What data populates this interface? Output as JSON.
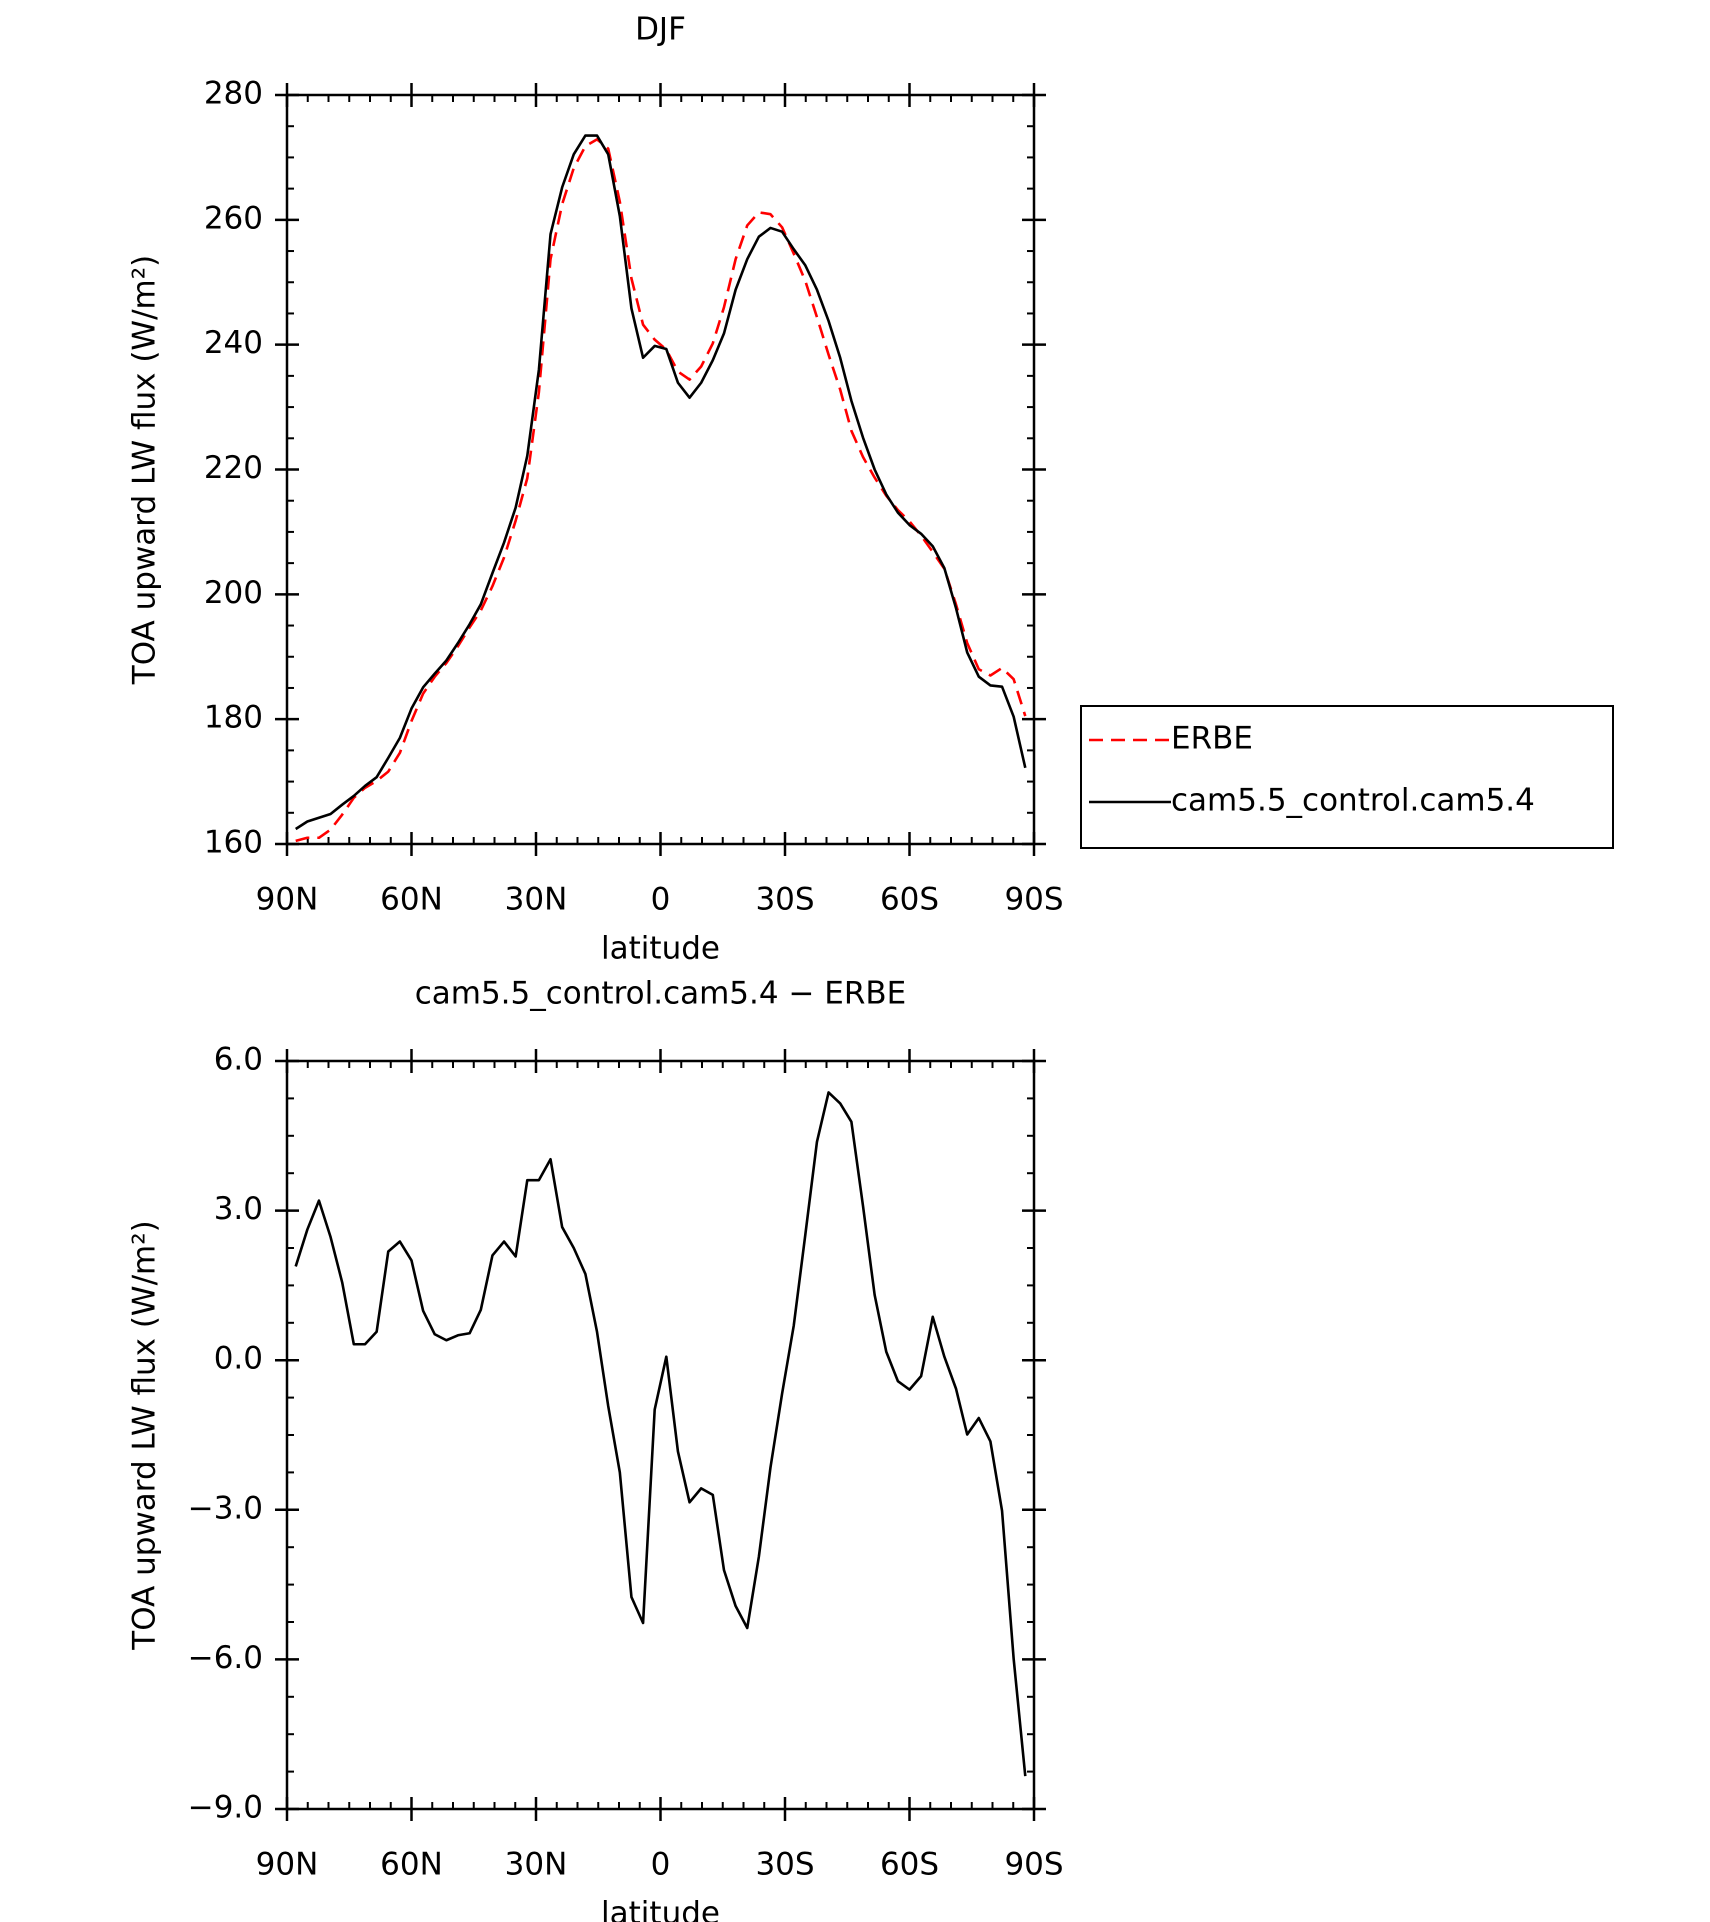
{
  "chart_data": [
    {
      "type": "line",
      "title": "DJF",
      "xlabel": "latitude",
      "ylabel": "TOA upward LW flux (W/m²)",
      "x": [
        87.9,
        85.1,
        82.3,
        79.5,
        76.7,
        73.9,
        71.2,
        68.4,
        65.6,
        62.8,
        60.0,
        57.2,
        54.4,
        51.6,
        48.8,
        46.0,
        43.3,
        40.5,
        37.7,
        34.9,
        32.1,
        29.3,
        26.5,
        23.7,
        20.9,
        18.1,
        15.3,
        12.6,
        9.8,
        7.0,
        4.2,
        1.4,
        -1.4,
        -4.2,
        -7.0,
        -9.8,
        -12.6,
        -15.3,
        -18.1,
        -20.9,
        -23.7,
        -26.5,
        -29.3,
        -32.1,
        -34.9,
        -37.7,
        -40.5,
        -43.3,
        -46.0,
        -48.8,
        -51.6,
        -54.4,
        -57.2,
        -60.0,
        -62.8,
        -65.6,
        -68.4,
        -71.2,
        -73.9,
        -76.7,
        -79.5,
        -82.3,
        -85.1,
        -87.9
      ],
      "series": [
        {
          "name": "ERBE",
          "color": "#ff0000",
          "linestyle": "dashed",
          "values": [
            160.5,
            161.0,
            161.0,
            162.3,
            164.7,
            167.4,
            169.0,
            170.1,
            171.6,
            174.6,
            179.7,
            184.1,
            186.8,
            189.0,
            191.7,
            194.7,
            197.4,
            201.3,
            205.9,
            211.8,
            218.6,
            232.4,
            253.7,
            262.5,
            268.3,
            271.8,
            272.9,
            271.4,
            262.9,
            250.6,
            243.2,
            240.8,
            239.2,
            235.7,
            234.4,
            236.5,
            240.2,
            246.0,
            253.7,
            259.1,
            261.2,
            260.9,
            258.8,
            254.6,
            250.2,
            244.4,
            238.4,
            232.8,
            226.2,
            222.0,
            218.7,
            215.8,
            213.5,
            211.7,
            209.4,
            206.8,
            204.1,
            198.4,
            192.2,
            188.0,
            187.0,
            188.2,
            186.4,
            180.5
          ]
        },
        {
          "name": "cam5.5_control.cam5.4",
          "color": "#000000",
          "linestyle": "solid",
          "values": [
            162.4,
            163.6,
            164.2,
            164.8,
            166.3,
            167.7,
            169.3,
            170.7,
            173.8,
            177.0,
            181.7,
            185.1,
            187.3,
            189.4,
            192.2,
            195.2,
            198.4,
            203.4,
            208.3,
            213.9,
            222.2,
            236.0,
            257.7,
            265.2,
            270.5,
            273.5,
            273.5,
            270.5,
            260.6,
            245.8,
            237.9,
            239.8,
            239.3,
            233.9,
            231.5,
            233.9,
            237.5,
            241.8,
            248.8,
            253.7,
            257.3,
            258.7,
            258.1,
            255.3,
            252.7,
            248.8,
            243.8,
            237.9,
            231.0,
            225.1,
            220.0,
            216.0,
            213.1,
            211.1,
            209.7,
            207.7,
            204.2,
            197.8,
            190.7,
            186.8,
            185.4,
            185.2,
            180.4,
            172.2
          ]
        }
      ],
      "xlim": [
        90,
        -90
      ],
      "xticks": [
        {
          "value": 90,
          "label": "90N"
        },
        {
          "value": 60,
          "label": "60N"
        },
        {
          "value": 30,
          "label": "30N"
        },
        0,
        {
          "value": -30,
          "label": "30S"
        },
        {
          "value": -60,
          "label": "60S"
        },
        {
          "value": -90,
          "label": "90S"
        }
      ],
      "ylim": [
        160,
        280
      ],
      "yticks": [
        160,
        180,
        200,
        220,
        240,
        260,
        280
      ],
      "legend": "right"
    },
    {
      "type": "line",
      "title": "cam5.5_control.cam5.4 − ERBE",
      "xlabel": "latitude",
      "ylabel": "TOA upward LW flux (W/m²)",
      "x": [
        87.9,
        85.1,
        82.3,
        79.5,
        76.7,
        73.9,
        71.2,
        68.4,
        65.6,
        62.8,
        60.0,
        57.2,
        54.4,
        51.6,
        48.8,
        46.0,
        43.3,
        40.5,
        37.7,
        34.9,
        32.1,
        29.3,
        26.5,
        23.7,
        20.9,
        18.1,
        15.3,
        12.6,
        9.8,
        7.0,
        4.2,
        1.4,
        -1.4,
        -4.2,
        -7.0,
        -9.8,
        -12.6,
        -15.3,
        -18.1,
        -20.9,
        -23.7,
        -26.5,
        -29.3,
        -32.1,
        -34.9,
        -37.7,
        -40.5,
        -43.3,
        -46.0,
        -48.8,
        -51.6,
        -54.4,
        -57.2,
        -60.0,
        -62.8,
        -65.6,
        -68.4,
        -71.2,
        -73.9,
        -76.7,
        -79.5,
        -82.3,
        -85.1,
        -87.9
      ],
      "color": "#000000",
      "values": [
        1.88,
        2.62,
        3.2,
        2.47,
        1.56,
        0.32,
        0.32,
        0.57,
        2.18,
        2.38,
        2.0,
        0.99,
        0.52,
        0.4,
        0.5,
        0.54,
        1.01,
        2.1,
        2.38,
        2.08,
        3.61,
        3.61,
        4.03,
        2.67,
        2.25,
        1.73,
        0.57,
        -0.92,
        -2.25,
        -4.75,
        -5.27,
        -0.99,
        0.07,
        -1.83,
        -2.85,
        -2.57,
        -2.7,
        -4.21,
        -4.93,
        -5.37,
        -3.94,
        -2.15,
        -0.67,
        0.69,
        2.52,
        4.38,
        5.37,
        5.15,
        4.78,
        3.09,
        1.31,
        0.17,
        -0.42,
        -0.59,
        -0.32,
        0.87,
        0.07,
        -0.57,
        -1.49,
        -1.16,
        -1.63,
        -3.02,
        -5.99,
        -8.34
      ],
      "xlim": [
        90,
        -90
      ],
      "xticks": [
        {
          "value": 90,
          "label": "90N"
        },
        {
          "value": 60,
          "label": "60N"
        },
        {
          "value": 30,
          "label": "30N"
        },
        0,
        {
          "value": -30,
          "label": "30S"
        },
        {
          "value": -60,
          "label": "60S"
        },
        {
          "value": -90,
          "label": "90S"
        }
      ],
      "ylim": [
        -9,
        6
      ],
      "yticks": [
        {
          "value": -9,
          "label": "−9.0"
        },
        {
          "value": -6,
          "label": "−6.0"
        },
        {
          "value": -3,
          "label": "−3.0"
        },
        {
          "value": 0,
          "label": "0.0"
        },
        {
          "value": 3,
          "label": "3.0"
        },
        {
          "value": 6,
          "label": "6.0"
        }
      ]
    }
  ]
}
